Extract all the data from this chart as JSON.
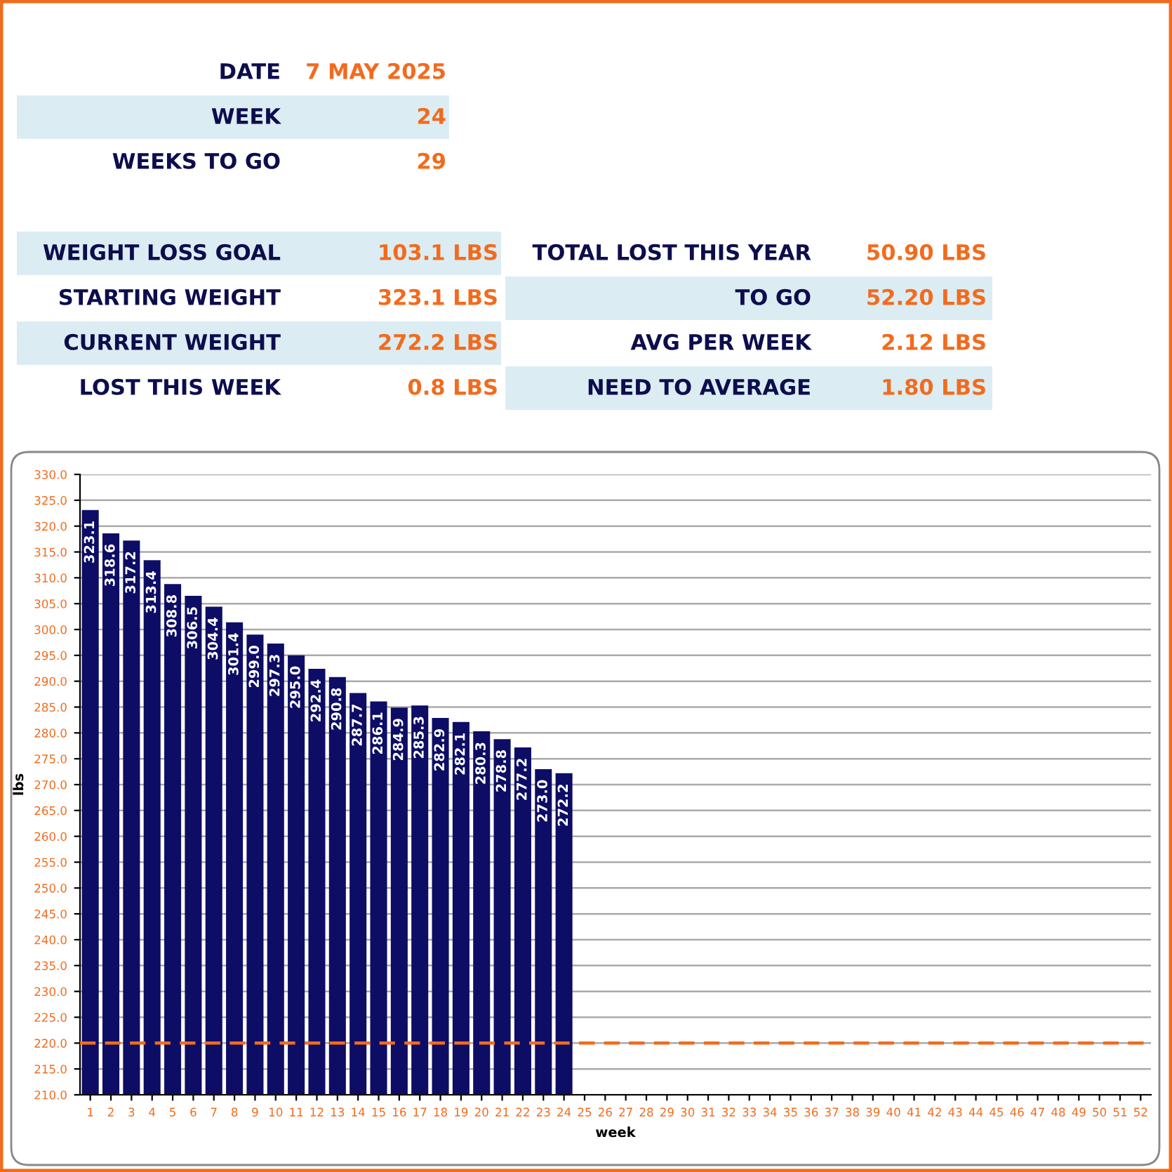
{
  "chart_data": [
    {
      "type": "other",
      "annotations": [
        "DATE",
        "7 MAY 2025",
        "WEEK",
        "24",
        "WEEKS TO GO",
        "29",
        "WEIGHT LOSS GOAL",
        "103.1 LBS",
        "STARTING WEIGHT",
        "323.1 LBS",
        "CURRENT WEIGHT",
        "272.2 LBS",
        "LOST THIS WEEK",
        "0.8 LBS",
        "TOTAL LOST THIS YEAR",
        "50.90 LBS",
        "TO GO",
        "52.20 LBS",
        "AVG PER WEEK",
        "2.12 LBS",
        "NEED TO AVERAGE",
        "1.80 LBS"
      ]
    },
    {
      "type": "bar",
      "xlabel": "week",
      "ylabel": "lbs",
      "categories": [
        "1",
        "2",
        "3",
        "4",
        "5",
        "6",
        "7",
        "8",
        "9",
        "10",
        "11",
        "12",
        "13",
        "14",
        "15",
        "16",
        "17",
        "18",
        "19",
        "20",
        "21",
        "22",
        "23",
        "24",
        "25",
        "26",
        "27",
        "28",
        "29",
        "30",
        "31",
        "32",
        "33",
        "34",
        "35",
        "36",
        "37",
        "38",
        "39",
        "40",
        "41",
        "42",
        "43",
        "44",
        "45",
        "46",
        "47",
        "48",
        "49",
        "50",
        "51",
        "52"
      ],
      "values": [
        323.1,
        318.6,
        317.2,
        313.4,
        308.8,
        306.5,
        304.4,
        301.4,
        299.0,
        297.3,
        295.0,
        292.4,
        290.8,
        287.7,
        286.1,
        284.9,
        285.3,
        282.9,
        282.1,
        280.3,
        278.8,
        277.2,
        273.0,
        272.2,
        null,
        null,
        null,
        null,
        null,
        null,
        null,
        null,
        null,
        null,
        null,
        null,
        null,
        null,
        null,
        null,
        null,
        null,
        null,
        null,
        null,
        null,
        null,
        null,
        null,
        null,
        null,
        null
      ],
      "value_labels": [
        "323.1",
        "318.6",
        "317.2",
        "313.4",
        "308.8",
        "306.5",
        "304.4",
        "301.4",
        "299.0",
        "297.3",
        "295.0",
        "292.4",
        "290.8",
        "287.7",
        "286.1",
        "284.9",
        "285.3",
        "282.9",
        "282.1",
        "280.3",
        "278.8",
        "277.2",
        "273.0",
        "272.2",
        null,
        null,
        null,
        null,
        null,
        null,
        null,
        null,
        null,
        null,
        null,
        null,
        null,
        null,
        null,
        null,
        null,
        null,
        null,
        null,
        null,
        null,
        null,
        null,
        null,
        null,
        null,
        null
      ],
      "color": "#0d0d66",
      "ylim": [
        210,
        330
      ],
      "yticks": [
        {
          "value": 210,
          "label": "210.0"
        },
        {
          "value": 215,
          "label": "215.0"
        },
        {
          "value": 220,
          "label": "220.0"
        },
        {
          "value": 225,
          "label": "225.0"
        },
        {
          "value": 230,
          "label": "230.0"
        },
        {
          "value": 235,
          "label": "235.0"
        },
        {
          "value": 240,
          "label": "240.0"
        },
        {
          "value": 245,
          "label": "245.0"
        },
        {
          "value": 250,
          "label": "250.0"
        },
        {
          "value": 255,
          "label": "255.0"
        },
        {
          "value": 260,
          "label": "260.0"
        },
        {
          "value": 265,
          "label": "265.0"
        },
        {
          "value": 270,
          "label": "270.0"
        },
        {
          "value": 275,
          "label": "275.0"
        },
        {
          "value": 280,
          "label": "280.0"
        },
        {
          "value": 285,
          "label": "285.0"
        },
        {
          "value": 290,
          "label": "290.0"
        },
        {
          "value": 295,
          "label": "295.0"
        },
        {
          "value": 300,
          "label": "300.0"
        },
        {
          "value": 305,
          "label": "305.0"
        },
        {
          "value": 310,
          "label": "310.0"
        },
        {
          "value": 315,
          "label": "315.0"
        },
        {
          "value": 320,
          "label": "320.0"
        },
        {
          "value": 325,
          "label": "325.0"
        },
        {
          "value": 330,
          "label": "330.0"
        }
      ],
      "grid": "y",
      "ref_lines": [
        {
          "axis": "y",
          "value": 220,
          "color": "#f26b1d",
          "line_style": "dashed"
        }
      ]
    }
  ]
}
